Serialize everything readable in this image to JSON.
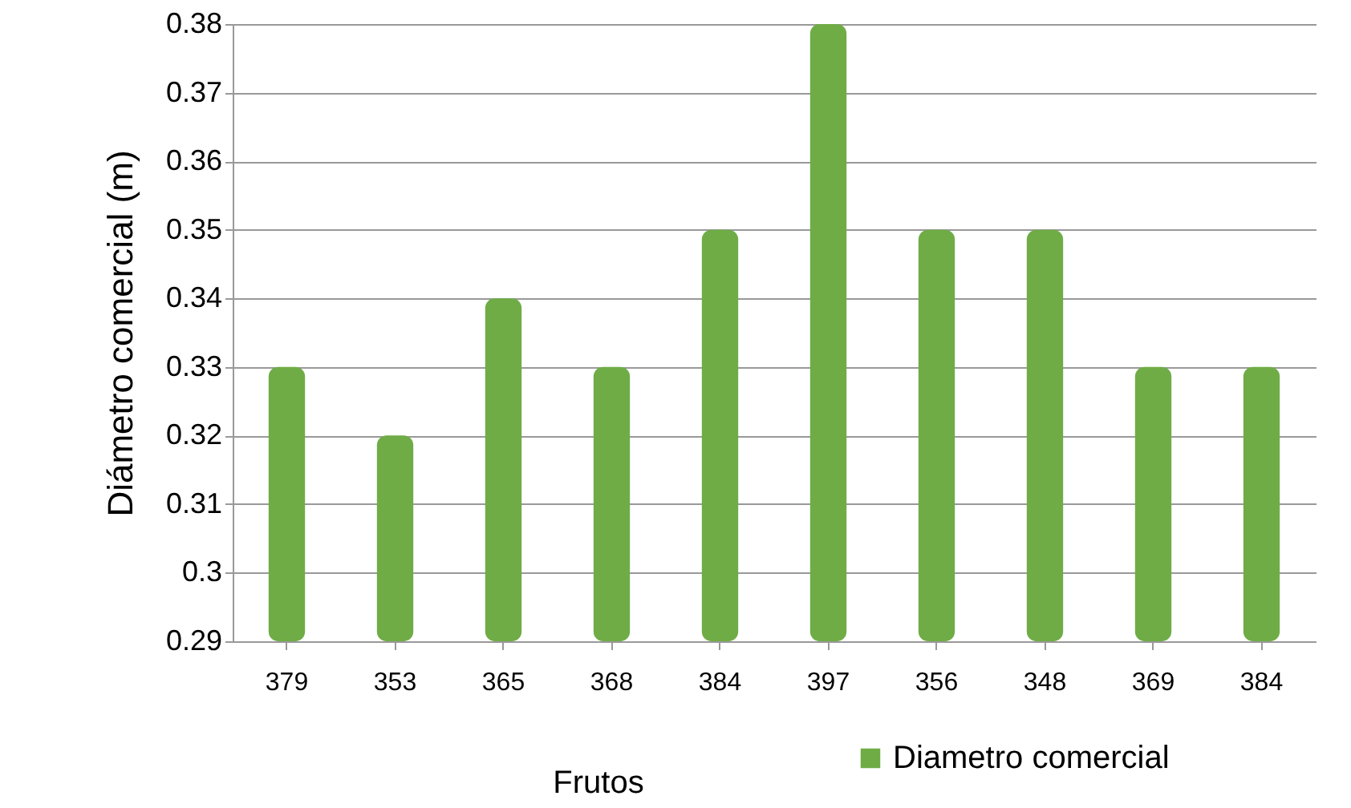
{
  "chart_data": {
    "type": "bar",
    "xlabel": "Frutos",
    "ylabel": "Diámetro comercial (m)",
    "categories": [
      "379",
      "353",
      "365",
      "368",
      "384",
      "397",
      "356",
      "348",
      "369",
      "384"
    ],
    "series": [
      {
        "name": "Diametro comercial",
        "color": "#6fac46",
        "values": [
          0.33,
          0.32,
          0.34,
          0.33,
          0.35,
          0.38,
          0.35,
          0.35,
          0.33,
          0.33
        ]
      }
    ],
    "ylim": [
      0.29,
      0.38
    ],
    "yticks": [
      0.29,
      0.3,
      0.31,
      0.32,
      0.33,
      0.34,
      0.35,
      0.36,
      0.37,
      0.38
    ],
    "grid": "y",
    "legend": "bottom"
  }
}
